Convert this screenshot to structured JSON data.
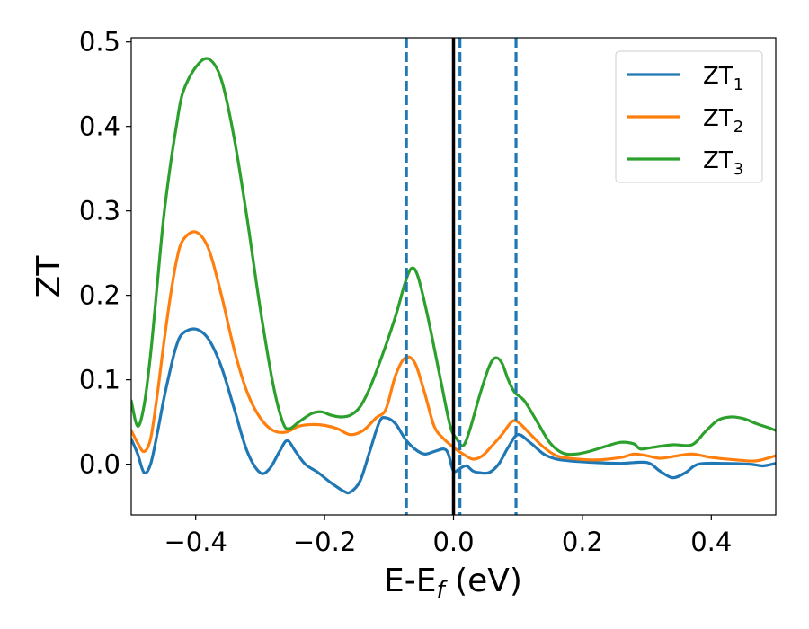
{
  "chart_data": {
    "type": "line",
    "xlabel": "E-E",
    "xlabel_sub": "f",
    "xlabel_unit": " (eV)",
    "ylabel": "ZT",
    "xlim": [
      -0.5,
      0.5
    ],
    "ylim": [
      -0.06,
      0.505
    ],
    "x_ticks": [
      -0.4,
      -0.2,
      0.0,
      0.2,
      0.4
    ],
    "x_tick_labels": [
      "−0.4",
      "−0.2",
      "0.0",
      "0.2",
      "0.4"
    ],
    "y_ticks": [
      0.0,
      0.1,
      0.2,
      0.3,
      0.4,
      0.5
    ],
    "y_tick_labels": [
      "0.0",
      "0.1",
      "0.2",
      "0.3",
      "0.4",
      "0.5"
    ],
    "grid": false,
    "legend_position": "top-right",
    "vlines_solid": [
      {
        "x": 0.0,
        "color": "#000000"
      }
    ],
    "vlines_dashed": [
      {
        "x": -0.073,
        "color": "#1f77b4"
      },
      {
        "x": 0.01,
        "color": "#1f77b4"
      },
      {
        "x": 0.097,
        "color": "#1f77b4"
      }
    ],
    "series": [
      {
        "name": "ZT",
        "name_sub": "1",
        "color": "#1f77b4",
        "points": [
          [
            -0.5,
            0.03
          ],
          [
            -0.49,
            0.012
          ],
          [
            -0.48,
            -0.01
          ],
          [
            -0.47,
            0.0
          ],
          [
            -0.46,
            0.035
          ],
          [
            -0.45,
            0.075
          ],
          [
            -0.44,
            0.11
          ],
          [
            -0.43,
            0.14
          ],
          [
            -0.42,
            0.155
          ],
          [
            -0.4,
            0.16
          ],
          [
            -0.38,
            0.148
          ],
          [
            -0.36,
            0.115
          ],
          [
            -0.34,
            0.065
          ],
          [
            -0.32,
            0.015
          ],
          [
            -0.3,
            -0.01
          ],
          [
            -0.285,
            -0.005
          ],
          [
            -0.27,
            0.015
          ],
          [
            -0.258,
            0.028
          ],
          [
            -0.245,
            0.015
          ],
          [
            -0.23,
            0.0
          ],
          [
            -0.21,
            -0.01
          ],
          [
            -0.19,
            -0.022
          ],
          [
            -0.17,
            -0.032
          ],
          [
            -0.16,
            -0.033
          ],
          [
            -0.145,
            -0.02
          ],
          [
            -0.13,
            0.015
          ],
          [
            -0.115,
            0.05
          ],
          [
            -0.105,
            0.055
          ],
          [
            -0.09,
            0.048
          ],
          [
            -0.075,
            0.03
          ],
          [
            -0.06,
            0.018
          ],
          [
            -0.045,
            0.012
          ],
          [
            -0.03,
            0.015
          ],
          [
            -0.015,
            0.018
          ],
          [
            -0.008,
            0.012
          ],
          [
            0.0,
            -0.008
          ],
          [
            0.01,
            -0.005
          ],
          [
            0.02,
            -0.002
          ],
          [
            0.03,
            -0.008
          ],
          [
            0.04,
            -0.01
          ],
          [
            0.055,
            -0.01
          ],
          [
            0.07,
            0.0
          ],
          [
            0.085,
            0.02
          ],
          [
            0.1,
            0.035
          ],
          [
            0.12,
            0.025
          ],
          [
            0.14,
            0.012
          ],
          [
            0.16,
            0.006
          ],
          [
            0.18,
            0.004
          ],
          [
            0.22,
            0.002
          ],
          [
            0.26,
            0.001
          ],
          [
            0.3,
            0.002
          ],
          [
            0.32,
            -0.008
          ],
          [
            0.34,
            -0.016
          ],
          [
            0.36,
            -0.01
          ],
          [
            0.38,
            0.0
          ],
          [
            0.42,
            0.001
          ],
          [
            0.46,
            0.0
          ],
          [
            0.48,
            -0.002
          ],
          [
            0.5,
            0.001
          ]
        ]
      },
      {
        "name": "ZT",
        "name_sub": "2",
        "color": "#ff7f0e",
        "points": [
          [
            -0.5,
            0.04
          ],
          [
            -0.49,
            0.025
          ],
          [
            -0.48,
            0.015
          ],
          [
            -0.47,
            0.03
          ],
          [
            -0.46,
            0.08
          ],
          [
            -0.45,
            0.14
          ],
          [
            -0.44,
            0.195
          ],
          [
            -0.43,
            0.24
          ],
          [
            -0.42,
            0.265
          ],
          [
            -0.4,
            0.275
          ],
          [
            -0.38,
            0.255
          ],
          [
            -0.36,
            0.2
          ],
          [
            -0.34,
            0.135
          ],
          [
            -0.32,
            0.085
          ],
          [
            -0.3,
            0.055
          ],
          [
            -0.28,
            0.04
          ],
          [
            -0.26,
            0.038
          ],
          [
            -0.24,
            0.045
          ],
          [
            -0.22,
            0.047
          ],
          [
            -0.2,
            0.046
          ],
          [
            -0.18,
            0.042
          ],
          [
            -0.16,
            0.035
          ],
          [
            -0.14,
            0.04
          ],
          [
            -0.12,
            0.055
          ],
          [
            -0.105,
            0.065
          ],
          [
            -0.09,
            0.105
          ],
          [
            -0.075,
            0.126
          ],
          [
            -0.06,
            0.12
          ],
          [
            -0.045,
            0.085
          ],
          [
            -0.03,
            0.045
          ],
          [
            -0.015,
            0.03
          ],
          [
            0.0,
            0.02
          ],
          [
            0.015,
            0.012
          ],
          [
            0.03,
            0.006
          ],
          [
            0.045,
            0.01
          ],
          [
            0.06,
            0.022
          ],
          [
            0.075,
            0.035
          ],
          [
            0.09,
            0.05
          ],
          [
            0.1,
            0.05
          ],
          [
            0.12,
            0.035
          ],
          [
            0.14,
            0.02
          ],
          [
            0.16,
            0.01
          ],
          [
            0.18,
            0.007
          ],
          [
            0.22,
            0.005
          ],
          [
            0.26,
            0.008
          ],
          [
            0.28,
            0.012
          ],
          [
            0.3,
            0.01
          ],
          [
            0.32,
            0.007
          ],
          [
            0.34,
            0.009
          ],
          [
            0.37,
            0.012
          ],
          [
            0.4,
            0.008
          ],
          [
            0.44,
            0.005
          ],
          [
            0.47,
            0.004
          ],
          [
            0.5,
            0.01
          ]
        ]
      },
      {
        "name": "ZT",
        "name_sub": "3",
        "color": "#2ca02c",
        "points": [
          [
            -0.5,
            0.075
          ],
          [
            -0.49,
            0.045
          ],
          [
            -0.48,
            0.07
          ],
          [
            -0.47,
            0.13
          ],
          [
            -0.46,
            0.21
          ],
          [
            -0.45,
            0.29
          ],
          [
            -0.44,
            0.35
          ],
          [
            -0.43,
            0.4
          ],
          [
            -0.42,
            0.44
          ],
          [
            -0.4,
            0.47
          ],
          [
            -0.38,
            0.48
          ],
          [
            -0.36,
            0.455
          ],
          [
            -0.34,
            0.385
          ],
          [
            -0.32,
            0.29
          ],
          [
            -0.3,
            0.185
          ],
          [
            -0.28,
            0.095
          ],
          [
            -0.265,
            0.05
          ],
          [
            -0.255,
            0.042
          ],
          [
            -0.24,
            0.05
          ],
          [
            -0.22,
            0.06
          ],
          [
            -0.205,
            0.062
          ],
          [
            -0.19,
            0.058
          ],
          [
            -0.175,
            0.056
          ],
          [
            -0.16,
            0.058
          ],
          [
            -0.145,
            0.068
          ],
          [
            -0.13,
            0.09
          ],
          [
            -0.11,
            0.13
          ],
          [
            -0.09,
            0.175
          ],
          [
            -0.075,
            0.215
          ],
          [
            -0.065,
            0.232
          ],
          [
            -0.055,
            0.222
          ],
          [
            -0.04,
            0.175
          ],
          [
            -0.02,
            0.1
          ],
          [
            -0.005,
            0.045
          ],
          [
            0.005,
            0.03
          ],
          [
            0.015,
            0.022
          ],
          [
            0.025,
            0.04
          ],
          [
            0.04,
            0.08
          ],
          [
            0.055,
            0.115
          ],
          [
            0.065,
            0.126
          ],
          [
            0.075,
            0.12
          ],
          [
            0.085,
            0.1
          ],
          [
            0.095,
            0.085
          ],
          [
            0.11,
            0.075
          ],
          [
            0.13,
            0.05
          ],
          [
            0.15,
            0.025
          ],
          [
            0.17,
            0.013
          ],
          [
            0.19,
            0.012
          ],
          [
            0.21,
            0.015
          ],
          [
            0.24,
            0.022
          ],
          [
            0.26,
            0.026
          ],
          [
            0.28,
            0.024
          ],
          [
            0.29,
            0.018
          ],
          [
            0.31,
            0.02
          ],
          [
            0.34,
            0.023
          ],
          [
            0.37,
            0.023
          ],
          [
            0.39,
            0.038
          ],
          [
            0.41,
            0.052
          ],
          [
            0.43,
            0.056
          ],
          [
            0.45,
            0.054
          ],
          [
            0.47,
            0.048
          ],
          [
            0.49,
            0.043
          ],
          [
            0.5,
            0.04
          ]
        ]
      }
    ]
  }
}
